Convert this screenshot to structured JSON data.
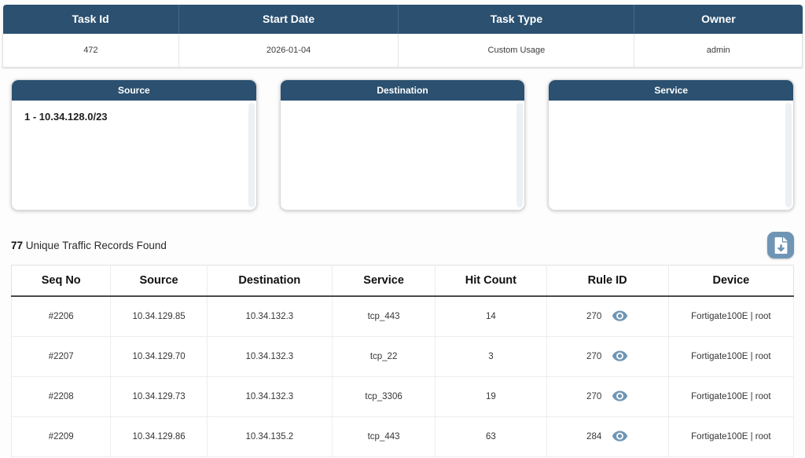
{
  "summary_table": {
    "headers": [
      "Task Id",
      "Start Date",
      "Task Type",
      "Owner"
    ],
    "values": [
      "472",
      "2026-01-04",
      "Custom Usage",
      "admin"
    ]
  },
  "panels": [
    {
      "title": "Source",
      "items": [
        "1 - 10.34.128.0/23"
      ]
    },
    {
      "title": "Destination",
      "items": []
    },
    {
      "title": "Service",
      "items": []
    }
  ],
  "records": {
    "count": "77",
    "label": "Unique Traffic Records Found"
  },
  "toolbar": {
    "download_icon": "file-download-icon"
  },
  "traffic_table": {
    "headers": [
      "Seq No",
      "Source",
      "Destination",
      "Service",
      "Hit Count",
      "Rule ID",
      "Device"
    ],
    "row_keys": [
      "seq",
      "source",
      "destination",
      "service",
      "hits",
      "rule_id",
      "device"
    ],
    "view_icon": "eye-icon",
    "rows": [
      {
        "seq": "#2206",
        "source": "10.34.129.85",
        "destination": "10.34.132.3",
        "service": "tcp_443",
        "hits": "14",
        "rule_id": "270",
        "device": "Fortigate100E | root"
      },
      {
        "seq": "#2207",
        "source": "10.34.129.70",
        "destination": "10.34.132.3",
        "service": "tcp_22",
        "hits": "3",
        "rule_id": "270",
        "device": "Fortigate100E | root"
      },
      {
        "seq": "#2208",
        "source": "10.34.129.73",
        "destination": "10.34.132.3",
        "service": "tcp_3306",
        "hits": "19",
        "rule_id": "270",
        "device": "Fortigate100E | root"
      },
      {
        "seq": "#2209",
        "source": "10.34.129.86",
        "destination": "10.34.135.2",
        "service": "tcp_443",
        "hits": "63",
        "rule_id": "284",
        "device": "Fortigate100E | root"
      }
    ]
  },
  "colors": {
    "header_navy": "#2b5070",
    "accent_steel_blue": "#6f95b5",
    "border_gray": "#e2e2e2"
  }
}
